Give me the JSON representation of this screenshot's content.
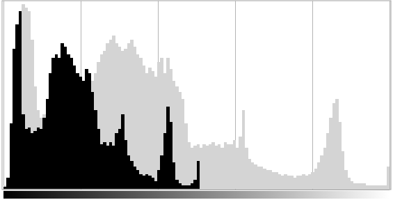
{
  "chart_data": {
    "type": "histogram",
    "bins": [
      0,
      2,
      4,
      6,
      8,
      10,
      12,
      14,
      16,
      18,
      20,
      22,
      24,
      26,
      28,
      30,
      32,
      34,
      36,
      38,
      40,
      42,
      44,
      46,
      48,
      50,
      52,
      54,
      56,
      58,
      60,
      62,
      64,
      66,
      68,
      70,
      72,
      74,
      76,
      78,
      80,
      82,
      84,
      86,
      88,
      90,
      92,
      94,
      96,
      98,
      100,
      102,
      104,
      106,
      108,
      110,
      112,
      114,
      116,
      118,
      120,
      122,
      124,
      126,
      128,
      130,
      132,
      134,
      136,
      138,
      140,
      142,
      144,
      146,
      148,
      150,
      152,
      154,
      156,
      158,
      160,
      162,
      164,
      166,
      168,
      170,
      172,
      174,
      176,
      178,
      180,
      182,
      184,
      186,
      188,
      190,
      192,
      194,
      196,
      198,
      200,
      202,
      204,
      206,
      208,
      210,
      212,
      214,
      216,
      218,
      220,
      222,
      224,
      226,
      228,
      230,
      232,
      234,
      236,
      238,
      240,
      242,
      244,
      246,
      248,
      250,
      252,
      254,
      256
    ],
    "series": [
      {
        "color": "#d4d4d4",
        "values": [
          2,
          6,
          30,
          70,
          85,
          90,
          99,
          97,
          95,
          80,
          55,
          42,
          38,
          40,
          45,
          58,
          66,
          70,
          68,
          74,
          72,
          68,
          66,
          62,
          60,
          58,
          56,
          62,
          60,
          58,
          62,
          68,
          72,
          74,
          78,
          80,
          82,
          78,
          76,
          74,
          75,
          78,
          80,
          76,
          72,
          70,
          66,
          62,
          65,
          63,
          60,
          68,
          70,
          62,
          70,
          64,
          58,
          55,
          52,
          48,
          35,
          25,
          22,
          23,
          24,
          22,
          24,
          23,
          24,
          25,
          23,
          24,
          22,
          25,
          24,
          24,
          26,
          22,
          28,
          42,
          22,
          16,
          14,
          13,
          12,
          12,
          11,
          10,
          10,
          9,
          9,
          8,
          7,
          8,
          7,
          7,
          6,
          7,
          7,
          8,
          7,
          8,
          9,
          11,
          14,
          18,
          22,
          30,
          38,
          46,
          48,
          36,
          20,
          10,
          6,
          4,
          3,
          3,
          3,
          3,
          2,
          2,
          2,
          2,
          2,
          2,
          2,
          12
        ]
      },
      {
        "color": "#000000",
        "values": [
          1,
          6,
          35,
          75,
          88,
          95,
          40,
          32,
          33,
          30,
          31,
          33,
          32,
          38,
          48,
          62,
          70,
          72,
          70,
          78,
          76,
          72,
          70,
          66,
          62,
          60,
          58,
          64,
          62,
          52,
          42,
          32,
          24,
          25,
          23,
          25,
          23,
          30,
          32,
          40,
          26,
          18,
          15,
          12,
          10,
          8,
          7,
          8,
          7,
          6,
          4,
          10,
          18,
          30,
          44,
          36,
          14,
          5,
          3,
          2,
          2,
          2,
          3,
          5,
          15,
          0,
          0,
          0,
          0,
          0,
          0,
          0,
          0,
          0,
          0,
          0,
          0,
          0,
          0,
          0,
          0,
          0,
          0,
          0,
          0,
          0,
          0,
          0,
          0,
          0,
          0,
          0,
          0,
          0,
          0,
          0,
          0,
          0,
          0,
          0,
          0,
          0,
          0,
          0,
          0,
          0,
          0,
          0,
          0,
          0,
          0,
          0,
          0,
          0,
          0,
          0,
          0,
          0,
          0,
          0,
          0,
          0,
          0,
          0,
          0,
          0,
          0,
          0
        ]
      }
    ],
    "xlim": [
      0,
      256
    ],
    "xticks": [
      0,
      51.2,
      102.4,
      153.6,
      204.8,
      256
    ],
    "ylim": [
      0,
      100
    ],
    "grid": true,
    "tick_labels": false
  }
}
